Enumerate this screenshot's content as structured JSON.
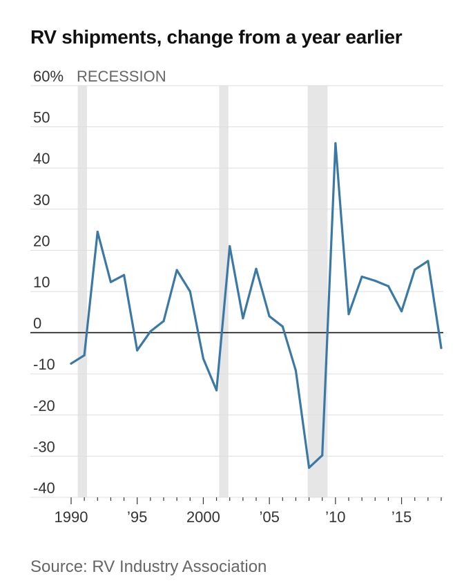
{
  "header": {
    "title": "RV shipments, change from a year earlier"
  },
  "footer": {
    "source": "Source: RV Industry Association"
  },
  "chart_data": {
    "type": "line",
    "title": "RV shipments, change from a year earlier",
    "xlabel": "",
    "ylabel": "",
    "ylim": [
      -40,
      60
    ],
    "xlim": [
      1990,
      2018
    ],
    "y_ticks": [
      60,
      50,
      40,
      30,
      20,
      10,
      0,
      -10,
      -20,
      -30,
      -40
    ],
    "y_tick_labels": [
      "60%",
      "50",
      "40",
      "30",
      "20",
      "10",
      "0",
      "-10",
      "-20",
      "-30",
      "-40"
    ],
    "x_ticks": [
      1990,
      1995,
      2000,
      2005,
      2010,
      2015
    ],
    "x_tick_labels": [
      "1990",
      "’95",
      "2000",
      "’05",
      "’10",
      "’15"
    ],
    "recession_label": "RECESSION",
    "recessions": [
      [
        1990.5,
        1991.2
      ],
      [
        2001.2,
        2001.9
      ],
      [
        2007.9,
        2009.4
      ]
    ],
    "series": [
      {
        "name": "RV shipments, % change from a year earlier",
        "color": "#3a78a6",
        "x": [
          1990,
          1991,
          1992,
          1993,
          1994,
          1995,
          1996,
          1997,
          1998,
          1999,
          2000,
          2001,
          2002,
          2003,
          2004,
          2005,
          2006,
          2007,
          2008,
          2009,
          2010,
          2011,
          2012,
          2013,
          2014,
          2015,
          2016,
          2017,
          2018
        ],
        "values": [
          -7.5,
          -5.5,
          24.5,
          12.3,
          14,
          -4.3,
          0.3,
          2.8,
          15.2,
          10,
          -6.3,
          -14,
          21,
          3.5,
          15.5,
          4,
          1.5,
          -9.2,
          -32.8,
          -29.8,
          46,
          4.5,
          13.6,
          12.6,
          11.3,
          5.2,
          15.3,
          17.4,
          -3.7
        ]
      }
    ]
  }
}
